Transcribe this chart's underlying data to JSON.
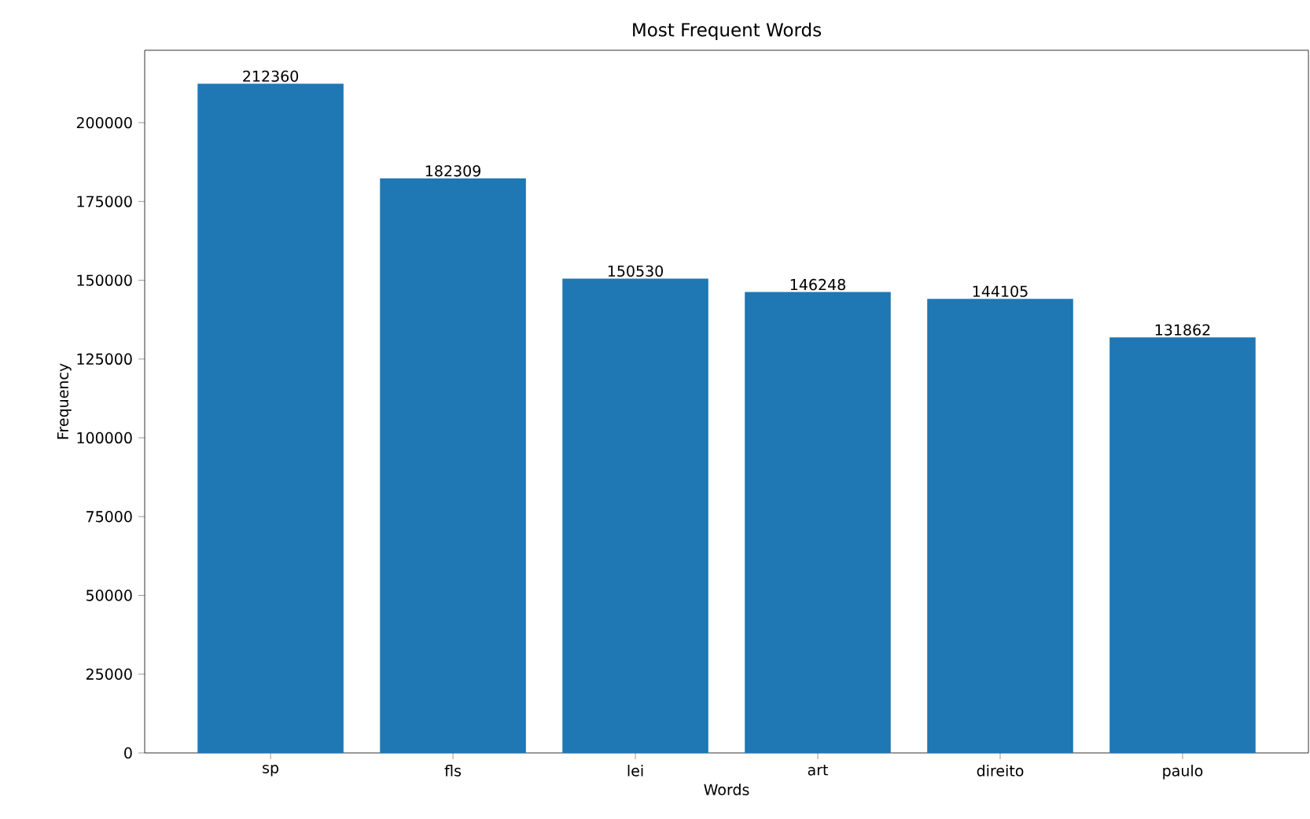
{
  "chart_data": {
    "type": "bar",
    "title": "Most Frequent Words",
    "xlabel": "Words",
    "ylabel": "Frequency",
    "categories": [
      "sp",
      "fls",
      "lei",
      "art",
      "direito",
      "paulo"
    ],
    "values": [
      212360,
      182309,
      150530,
      146248,
      144105,
      131862
    ],
    "color": "#1f77b4",
    "data_labels": true,
    "ylim": [
      0,
      222978
    ],
    "yticks": [
      0,
      25000,
      50000,
      75000,
      100000,
      125000,
      150000,
      175000,
      200000
    ]
  }
}
